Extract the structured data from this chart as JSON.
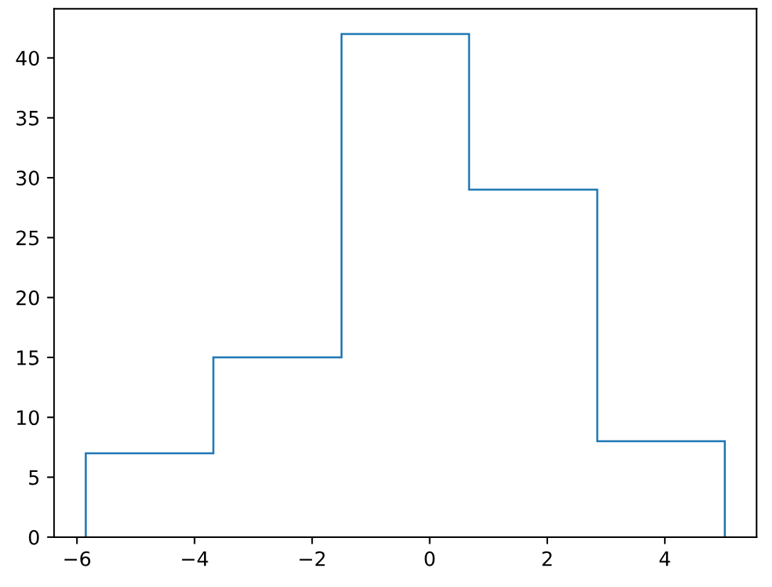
{
  "chart_data": {
    "type": "histogram",
    "bins": [
      -5.85,
      -3.68,
      -1.5,
      0.67,
      2.85,
      5.02
    ],
    "values": [
      7,
      15,
      42,
      29,
      8
    ],
    "color": "#1f77b4",
    "xlim": [
      -6.39,
      5.56
    ],
    "ylim": [
      0,
      44.1
    ],
    "xticks": [
      -6,
      -4,
      -2,
      0,
      2,
      4
    ],
    "yticks": [
      0,
      5,
      10,
      15,
      20,
      25,
      30,
      35,
      40
    ],
    "grid": false
  }
}
